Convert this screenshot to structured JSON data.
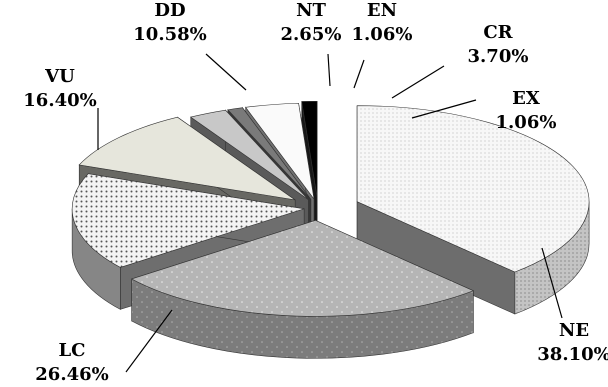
{
  "chart_data": {
    "type": "pie",
    "style": "3d-exploded",
    "legend": "none",
    "slices": [
      {
        "name": "NE",
        "percent_label": "38.10%",
        "value": 38.1,
        "color": "#f2f2f2",
        "pattern": "fine-dots"
      },
      {
        "name": "LC",
        "percent_label": "26.46%",
        "value": 26.46,
        "color": "#b5b5b5",
        "pattern": "sparse-dots"
      },
      {
        "name": "VU",
        "percent_label": "16.40%",
        "value": 16.4,
        "color": "#f4f4f4",
        "pattern": "dense-dots"
      },
      {
        "name": "DD",
        "percent_label": "10.58%",
        "value": 10.58,
        "color": "#e6e6dc",
        "pattern": "solid"
      },
      {
        "name": "NT",
        "percent_label": "2.65%",
        "value": 2.65,
        "color": "#c8c8c8",
        "pattern": "solid"
      },
      {
        "name": "EN",
        "percent_label": "1.06%",
        "value": 1.06,
        "color": "#7a7a7a",
        "pattern": "solid"
      },
      {
        "name": "CR",
        "percent_label": "3.70%",
        "value": 3.7,
        "color": "#fafafa",
        "pattern": "solid"
      },
      {
        "name": "EX",
        "percent_label": "1.06%",
        "value": 1.06,
        "color": "#000000",
        "pattern": "solid"
      }
    ]
  }
}
